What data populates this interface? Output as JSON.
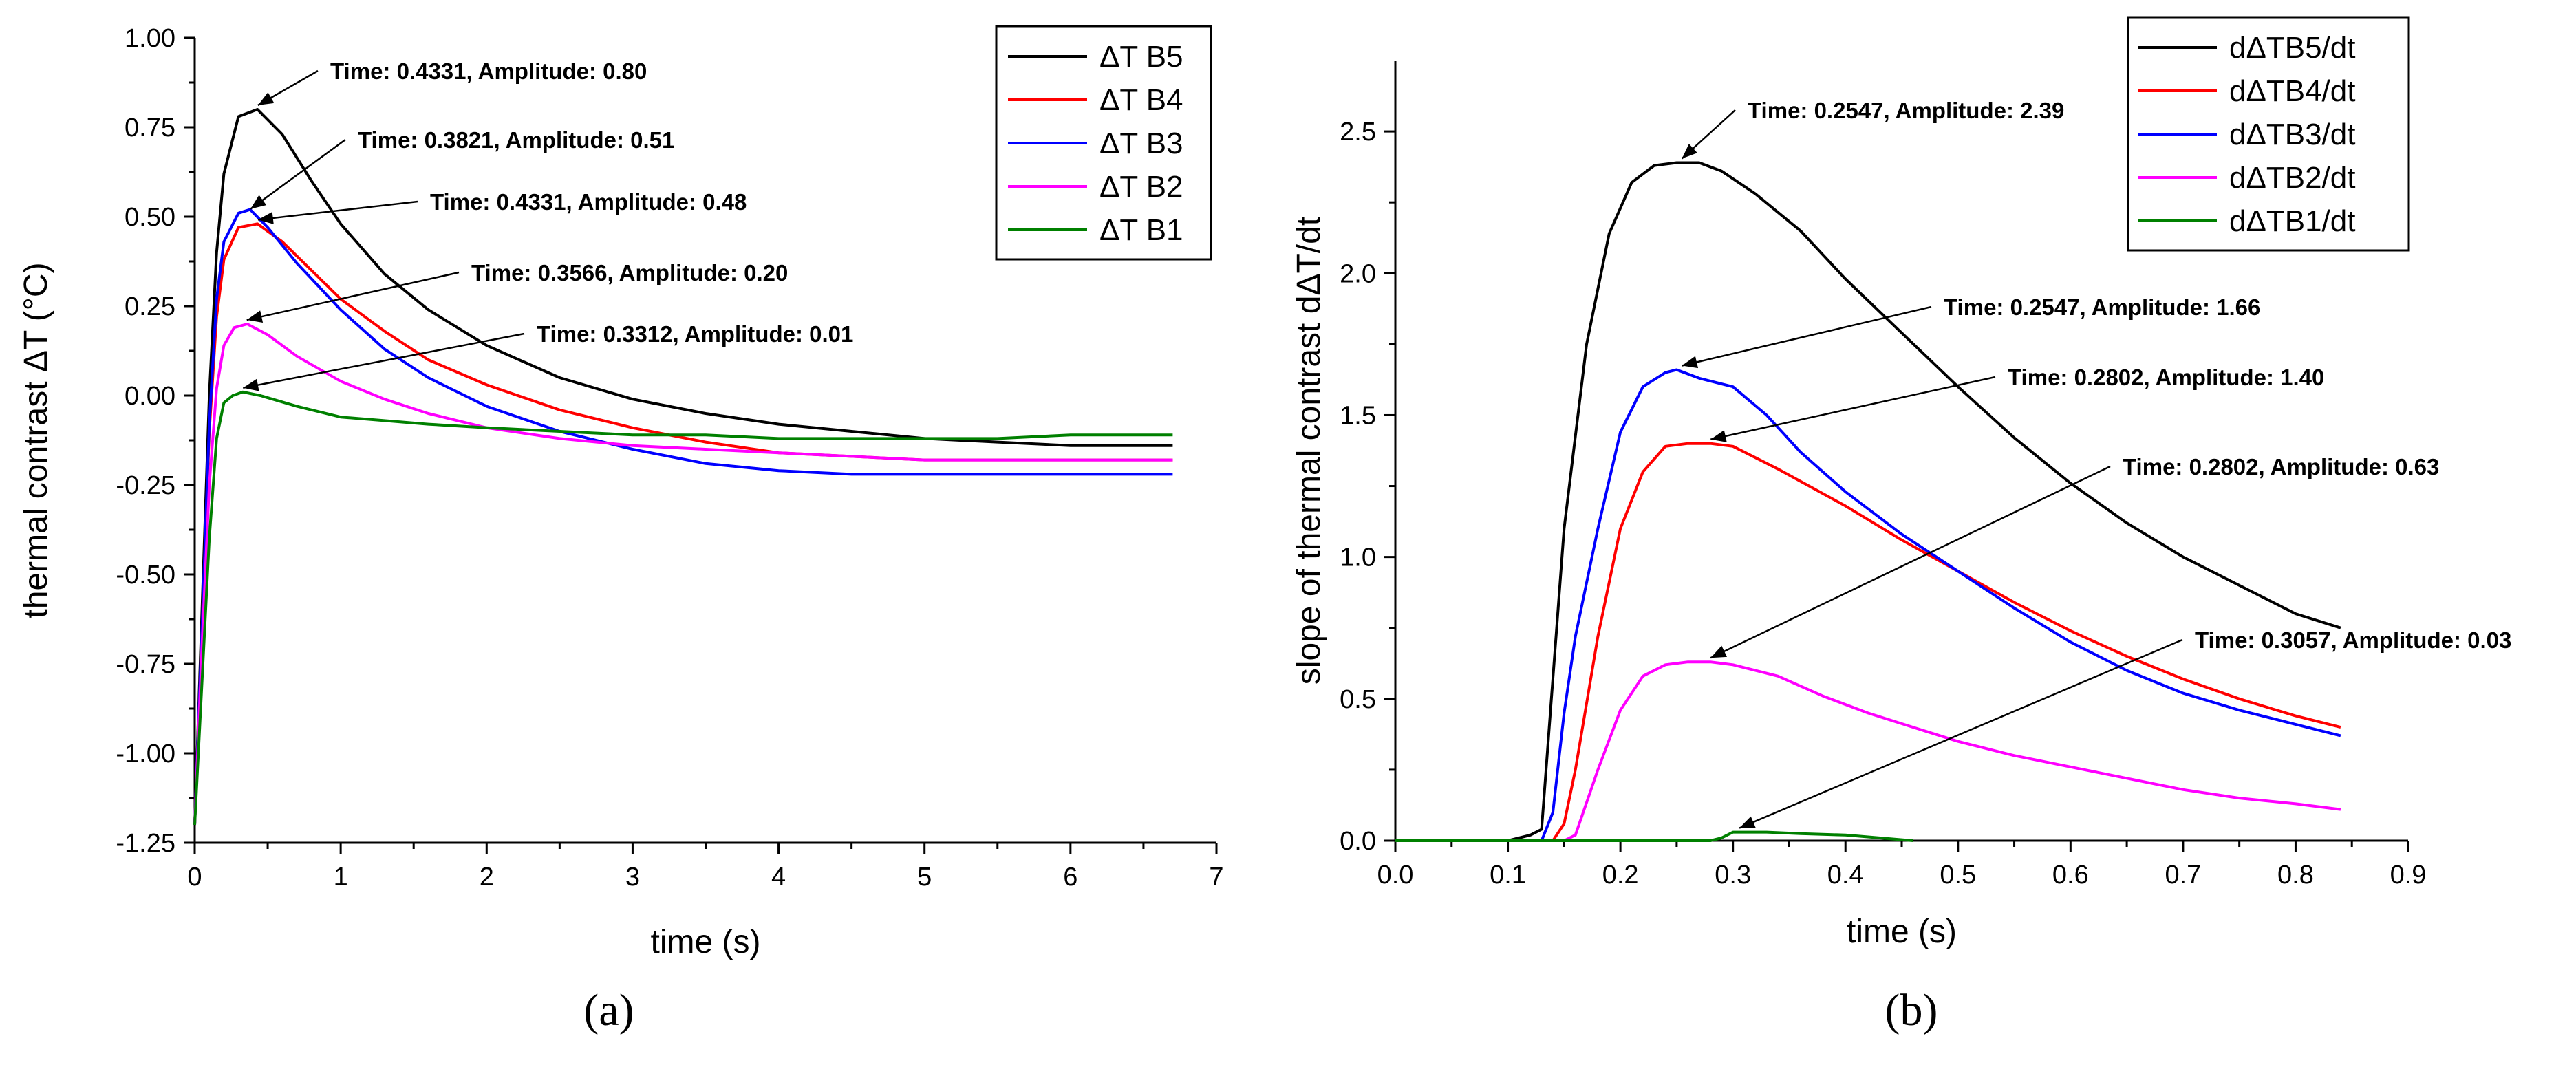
{
  "chart_data": [
    {
      "type": "line",
      "panel_label": "(a)",
      "xlabel": "time (s)",
      "ylabel": "thermal contrast ΔT (°C)",
      "xlim": [
        0,
        7
      ],
      "ylim": [
        -1.25,
        1.0
      ],
      "xticks": [
        0,
        1,
        2,
        3,
        4,
        5,
        6,
        7
      ],
      "xtick_labels": [
        "0",
        "1",
        "2",
        "3",
        "4",
        "5",
        "6",
        "7"
      ],
      "yticks": [
        -1.25,
        -1.0,
        -0.75,
        -0.5,
        -0.25,
        0.0,
        0.25,
        0.5,
        0.75,
        1.0
      ],
      "ytick_labels": [
        "-1.25",
        "-1.00",
        "-0.75",
        "-0.50",
        "-0.25",
        "0.00",
        "0.25",
        "0.50",
        "0.75",
        "1.00"
      ],
      "legend_position": "top-right",
      "series": [
        {
          "name": "ΔT B5",
          "color": "#000000",
          "x": [
            0,
            0.05,
            0.1,
            0.15,
            0.2,
            0.3,
            0.43,
            0.6,
            0.8,
            1,
            1.3,
            1.6,
            2,
            2.5,
            3,
            3.5,
            4,
            4.5,
            5,
            5.5,
            6,
            6.7
          ],
          "y": [
            -1.2,
            -0.6,
            0.0,
            0.4,
            0.62,
            0.78,
            0.8,
            0.73,
            0.6,
            0.48,
            0.34,
            0.24,
            0.14,
            0.05,
            -0.01,
            -0.05,
            -0.08,
            -0.1,
            -0.12,
            -0.13,
            -0.14,
            -0.14
          ]
        },
        {
          "name": "ΔT B4",
          "color": "#ff0000",
          "x": [
            0,
            0.05,
            0.1,
            0.15,
            0.2,
            0.3,
            0.43,
            0.6,
            0.8,
            1,
            1.3,
            1.6,
            2,
            2.5,
            3,
            3.5,
            4,
            4.5,
            5,
            5.5,
            6,
            6.7
          ],
          "y": [
            -1.2,
            -0.65,
            -0.1,
            0.22,
            0.38,
            0.47,
            0.48,
            0.43,
            0.35,
            0.27,
            0.18,
            0.1,
            0.03,
            -0.04,
            -0.09,
            -0.13,
            -0.16,
            -0.17,
            -0.18,
            -0.18,
            -0.18,
            -0.18
          ]
        },
        {
          "name": "ΔT B3",
          "color": "#0000ff",
          "x": [
            0,
            0.05,
            0.1,
            0.15,
            0.2,
            0.3,
            0.38,
            0.5,
            0.7,
            1,
            1.3,
            1.6,
            2,
            2.5,
            3,
            3.5,
            4,
            4.5,
            5,
            5.5,
            6,
            6.7
          ],
          "y": [
            -1.2,
            -0.65,
            -0.08,
            0.27,
            0.43,
            0.51,
            0.52,
            0.47,
            0.37,
            0.24,
            0.13,
            0.05,
            -0.03,
            -0.1,
            -0.15,
            -0.19,
            -0.21,
            -0.22,
            -0.22,
            -0.22,
            -0.22,
            -0.22
          ]
        },
        {
          "name": "ΔT B2",
          "color": "#ff00ff",
          "x": [
            0,
            0.05,
            0.1,
            0.15,
            0.2,
            0.27,
            0.36,
            0.5,
            0.7,
            1,
            1.3,
            1.6,
            2,
            2.5,
            3,
            3.5,
            4,
            4.5,
            5,
            5.5,
            6,
            6.7
          ],
          "y": [
            -1.2,
            -0.7,
            -0.25,
            0.02,
            0.14,
            0.19,
            0.2,
            0.17,
            0.11,
            0.04,
            -0.01,
            -0.05,
            -0.09,
            -0.12,
            -0.14,
            -0.15,
            -0.16,
            -0.17,
            -0.18,
            -0.18,
            -0.18,
            -0.18
          ]
        },
        {
          "name": "ΔT B1",
          "color": "#008000",
          "x": [
            0,
            0.05,
            0.1,
            0.15,
            0.2,
            0.26,
            0.33,
            0.45,
            0.7,
            1,
            1.3,
            1.6,
            2,
            2.5,
            3,
            3.5,
            4,
            4.5,
            5,
            5.5,
            6,
            6.7
          ],
          "y": [
            -1.2,
            -0.8,
            -0.4,
            -0.12,
            -0.02,
            0.0,
            0.01,
            0.0,
            -0.03,
            -0.06,
            -0.07,
            -0.08,
            -0.09,
            -0.1,
            -0.11,
            -0.11,
            -0.12,
            -0.12,
            -0.12,
            -0.12,
            -0.11,
            -0.11
          ]
        }
      ],
      "annotations": [
        {
          "text": "Time: 0.4331, Amplitude: 0.80",
          "x": 0.4331,
          "y": 0.8
        },
        {
          "text": "Time: 0.3821, Amplitude: 0.51",
          "x": 0.3821,
          "y": 0.51
        },
        {
          "text": "Time: 0.4331, Amplitude: 0.48",
          "x": 0.4331,
          "y": 0.48
        },
        {
          "text": "Time: 0.3566, Amplitude: 0.20",
          "x": 0.3566,
          "y": 0.2
        },
        {
          "text": "Time: 0.3312, Amplitude: 0.01",
          "x": 0.3312,
          "y": 0.01
        }
      ]
    },
    {
      "type": "line",
      "panel_label": "(b)",
      "xlabel": "time (s)",
      "ylabel": "slope of thermal contrast dΔT/dt",
      "xlim": [
        0,
        0.9
      ],
      "ylim": [
        0,
        2.75
      ],
      "xticks": [
        0,
        0.1,
        0.2,
        0.3,
        0.4,
        0.5,
        0.6,
        0.7,
        0.8,
        0.9
      ],
      "xtick_labels": [
        "0.0",
        "0.1",
        "0.2",
        "0.3",
        "0.4",
        "0.5",
        "0.6",
        "0.7",
        "0.8",
        "0.9"
      ],
      "yticks": [
        0,
        0.5,
        1.0,
        1.5,
        2.0,
        2.5
      ],
      "ytick_labels": [
        "0.0",
        "0.5",
        "1.0",
        "1.5",
        "2.0",
        "2.5"
      ],
      "legend_position": "top-right",
      "series": [
        {
          "name": "dΔTB5/dt",
          "color": "#000000",
          "x": [
            0,
            0.1,
            0.12,
            0.13,
            0.15,
            0.17,
            0.19,
            0.21,
            0.23,
            0.25,
            0.27,
            0.29,
            0.32,
            0.36,
            0.4,
            0.45,
            0.5,
            0.55,
            0.6,
            0.65,
            0.7,
            0.75,
            0.8,
            0.84
          ],
          "y": [
            0,
            0,
            0.02,
            0.04,
            1.1,
            1.75,
            2.14,
            2.32,
            2.38,
            2.39,
            2.39,
            2.36,
            2.28,
            2.15,
            1.98,
            1.79,
            1.6,
            1.42,
            1.26,
            1.12,
            1.0,
            0.9,
            0.8,
            0.75
          ]
        },
        {
          "name": "dΔTB4/dt",
          "color": "#ff0000",
          "x": [
            0,
            0.14,
            0.15,
            0.16,
            0.18,
            0.2,
            0.22,
            0.24,
            0.26,
            0.28,
            0.3,
            0.34,
            0.4,
            0.45,
            0.5,
            0.55,
            0.6,
            0.65,
            0.7,
            0.75,
            0.8,
            0.84
          ],
          "y": [
            0,
            0,
            0.06,
            0.25,
            0.72,
            1.1,
            1.3,
            1.39,
            1.4,
            1.4,
            1.39,
            1.31,
            1.18,
            1.06,
            0.95,
            0.84,
            0.74,
            0.65,
            0.57,
            0.5,
            0.44,
            0.4
          ]
        },
        {
          "name": "dΔTB3/dt",
          "color": "#0000ff",
          "x": [
            0,
            0.13,
            0.14,
            0.15,
            0.16,
            0.18,
            0.2,
            0.22,
            0.24,
            0.25,
            0.27,
            0.3,
            0.33,
            0.36,
            0.4,
            0.45,
            0.5,
            0.55,
            0.6,
            0.65,
            0.7,
            0.75,
            0.8,
            0.84
          ],
          "y": [
            0,
            0,
            0.1,
            0.45,
            0.72,
            1.1,
            1.44,
            1.6,
            1.65,
            1.66,
            1.63,
            1.6,
            1.5,
            1.37,
            1.23,
            1.08,
            0.95,
            0.82,
            0.7,
            0.6,
            0.52,
            0.46,
            0.41,
            0.37
          ]
        },
        {
          "name": "dΔTB2/dt",
          "color": "#ff00ff",
          "x": [
            0,
            0.15,
            0.16,
            0.18,
            0.2,
            0.22,
            0.24,
            0.26,
            0.28,
            0.3,
            0.34,
            0.38,
            0.42,
            0.46,
            0.5,
            0.55,
            0.6,
            0.65,
            0.7,
            0.75,
            0.8,
            0.84
          ],
          "y": [
            0,
            0,
            0.02,
            0.25,
            0.46,
            0.58,
            0.62,
            0.63,
            0.63,
            0.62,
            0.58,
            0.51,
            0.45,
            0.4,
            0.35,
            0.3,
            0.26,
            0.22,
            0.18,
            0.15,
            0.13,
            0.11
          ]
        },
        {
          "name": "dΔTB1/dt",
          "color": "#008000",
          "x": [
            0,
            0.28,
            0.29,
            0.3,
            0.31,
            0.33,
            0.36,
            0.4,
            0.43,
            0.46
          ],
          "y": [
            0,
            0,
            0.01,
            0.03,
            0.03,
            0.03,
            0.025,
            0.02,
            0.01,
            0
          ]
        }
      ],
      "annotations": [
        {
          "text": "Time: 0.2547, Amplitude: 2.39",
          "x": 0.2547,
          "y": 2.39
        },
        {
          "text": "Time: 0.2547, Amplitude: 1.66",
          "x": 0.2547,
          "y": 1.66
        },
        {
          "text": "Time: 0.2802, Amplitude: 1.40",
          "x": 0.2802,
          "y": 1.4
        },
        {
          "text": "Time: 0.2802, Amplitude: 0.63",
          "x": 0.2802,
          "y": 0.63
        },
        {
          "text": "Time: 0.3057, Amplitude: 0.03",
          "x": 0.3057,
          "y": 0.03
        }
      ]
    }
  ]
}
